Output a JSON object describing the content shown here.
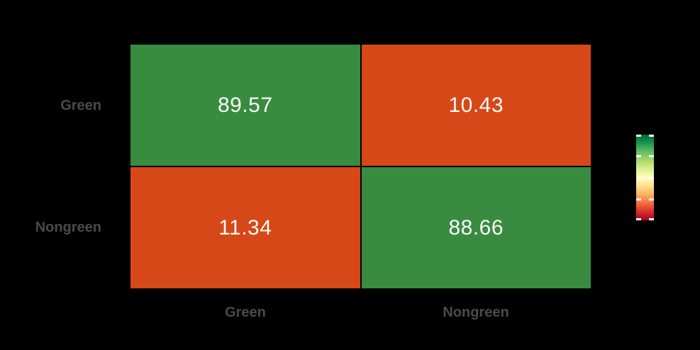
{
  "chart_data": {
    "type": "heatmap",
    "title": "",
    "x_axis_categories": [
      "Green",
      "Nongreen"
    ],
    "y_axis_categories": [
      "Green",
      "Nongreen"
    ],
    "values": [
      [
        89.57,
        10.43
      ],
      [
        11.34,
        88.66
      ]
    ],
    "value_labels": [
      [
        "89.57",
        "10.43"
      ],
      [
        "11.34",
        "88.66"
      ]
    ],
    "cell_colors": [
      [
        "#398c3f",
        "#d64817"
      ],
      [
        "#d64817",
        "#398c3f"
      ]
    ],
    "grid": false,
    "legend_position": "right",
    "colorbar": {
      "orientation": "vertical",
      "gradient_top_to_bottom": [
        "#006837",
        "#1a9850",
        "#66bd63",
        "#a6d96a",
        "#d9ef8b",
        "#ffffbf",
        "#fee08b",
        "#fdae61",
        "#f46d43",
        "#d73027",
        "#a50026"
      ],
      "tick_count": 5,
      "tick_color": "#ffffff"
    },
    "colors": {
      "background": "#000000",
      "axis_label": "#4a4a4a",
      "cell_text": "#fafafa"
    }
  }
}
